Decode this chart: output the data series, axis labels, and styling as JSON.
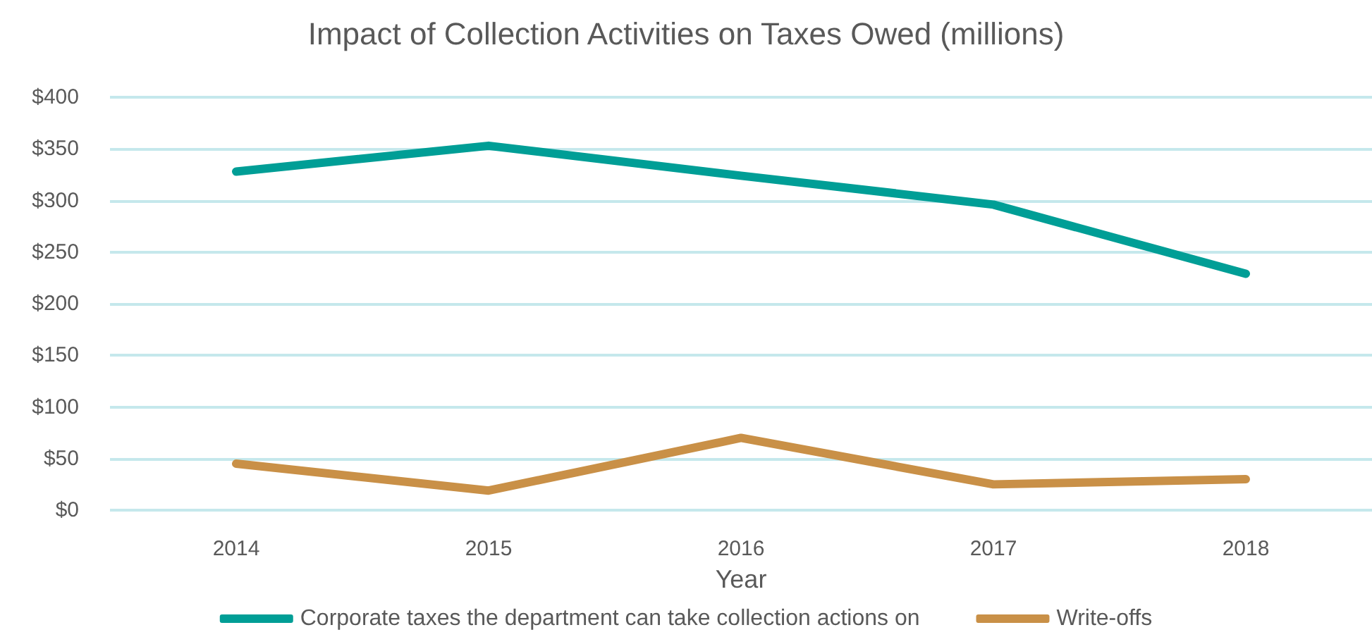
{
  "chart_data": {
    "type": "line",
    "title": "Impact of Collection Activities on Taxes Owed (millions)",
    "xlabel": "Year",
    "categories": [
      "2014",
      "2015",
      "2016",
      "2017",
      "2018"
    ],
    "series": [
      {
        "name": "Corporate taxes the department can take collection actions on",
        "color": "#009e96",
        "values": [
          328,
          353,
          324,
          296,
          229
        ]
      },
      {
        "name": "Write-offs",
        "color": "#c99047",
        "values": [
          45,
          19,
          70,
          25,
          30
        ]
      }
    ],
    "ylim": [
      0,
      400
    ],
    "yticks": [
      {
        "value": 0,
        "label": "$0"
      },
      {
        "value": 50,
        "label": "$50"
      },
      {
        "value": 100,
        "label": "$100"
      },
      {
        "value": 150,
        "label": "$150"
      },
      {
        "value": 200,
        "label": "$200"
      },
      {
        "value": 250,
        "label": "$250"
      },
      {
        "value": 300,
        "label": "$300"
      },
      {
        "value": 350,
        "label": "$350"
      },
      {
        "value": 400,
        "label": "$400"
      }
    ],
    "grid": "y",
    "legend": "bottom",
    "marker": "none",
    "line_style": "solid"
  }
}
